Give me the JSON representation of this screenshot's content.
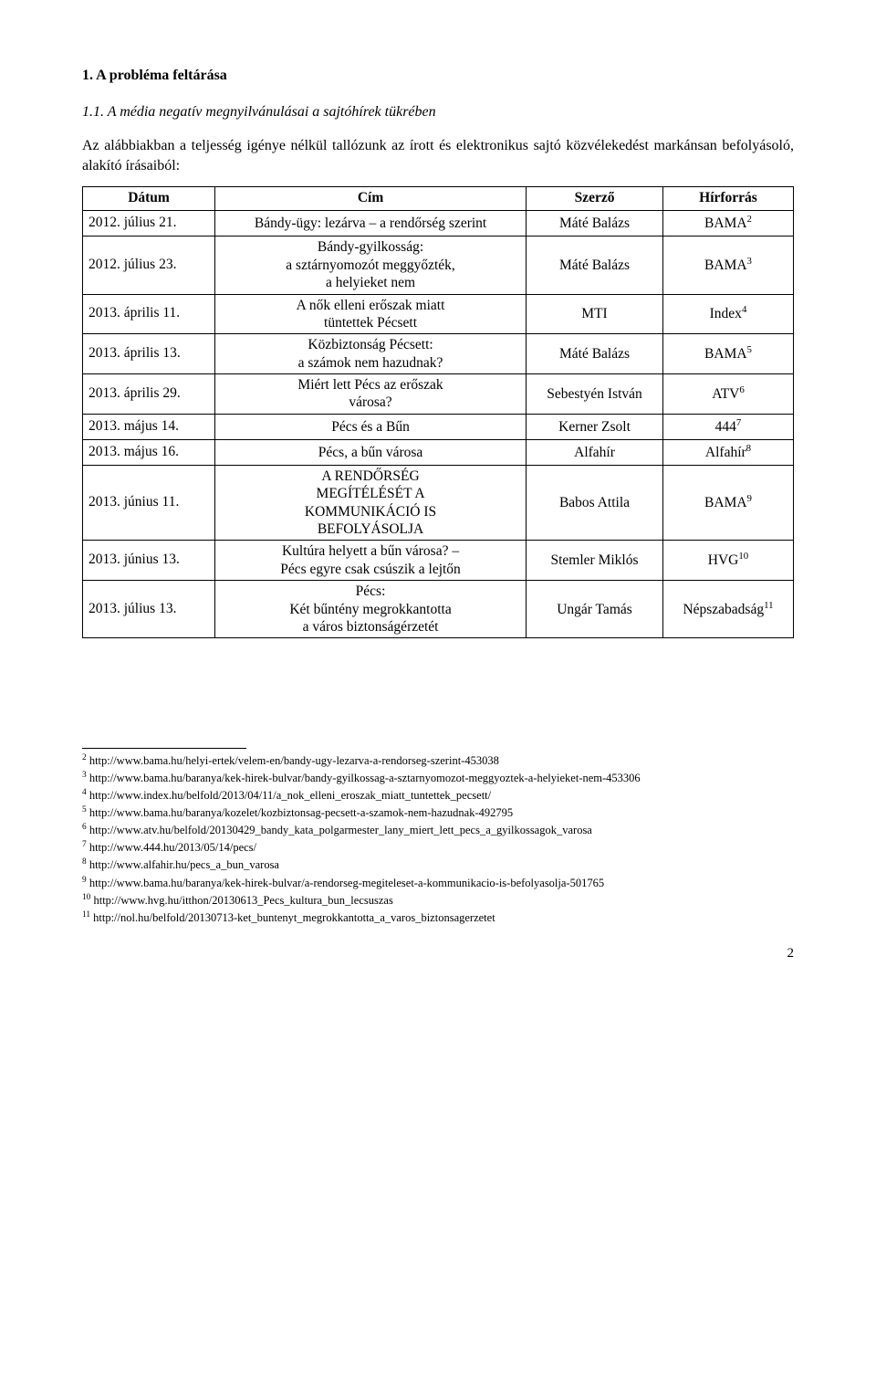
{
  "heading": "1. A probléma feltárása",
  "subheading": "1.1. A média negatív megnyilvánulásai a sajtóhírek tükrében",
  "intro": "Az alábbiakban a teljesség igénye nélkül tallózunk az írott és elektronikus sajtó közvélekedést markánsan befolyásoló, alakító írásaiból:",
  "table": {
    "headers": {
      "date": "Dátum",
      "title": "Cím",
      "author": "Szerző",
      "source": "Hírforrás"
    },
    "rows": [
      {
        "date": "2012. július 21.",
        "title": "Bándy-ügy: lezárva – a rendőrség szerint",
        "author": "Máté Balázs",
        "source": "BAMA",
        "sup": "2"
      },
      {
        "date": "2012. július 23.",
        "title": "Bándy-gyilkosság:\na sztárnyomozót meggyőzték,\na helyieket nem",
        "author": "Máté Balázs",
        "source": "BAMA",
        "sup": "3"
      },
      {
        "date": "2013. április 11.",
        "title": "A nők elleni erőszak miatt\ntüntettek Pécsett",
        "author": "MTI",
        "source": "Index",
        "sup": "4"
      },
      {
        "date": "2013. április 13.",
        "title": "Közbiztonság Pécsett:\na számok nem hazudnak?",
        "author": "Máté Balázs",
        "source": "BAMA",
        "sup": "5"
      },
      {
        "date": "2013. április 29.",
        "title": "Miért lett Pécs az erőszak\nvárosa?",
        "author": "Sebestyén István",
        "source": "ATV",
        "sup": "6"
      },
      {
        "date": "2013. május 14.",
        "title": "Pécs és a Bűn",
        "author": "Kerner Zsolt",
        "source": "444",
        "sup": "7"
      },
      {
        "date": "2013. május 16.",
        "title": "Pécs, a bűn városa",
        "author": "Alfahír",
        "source": "Alfahír",
        "sup": "8"
      },
      {
        "date": "2013. június 11.",
        "title": "A RENDŐRSÉG\nMEGÍTÉLÉSÉT A\nKOMMUNIKÁCIÓ IS\nBEFOLYÁSOLJA",
        "author": "Babos Attila",
        "source": "BAMA",
        "sup": "9"
      },
      {
        "date": "2013. június 13.",
        "title": "Kultúra helyett a bűn városa? –\nPécs egyre csak csúszik a lejtőn",
        "author": "Stemler Miklós",
        "source": "HVG",
        "sup": "10"
      },
      {
        "date": "2013. július 13.",
        "title": "Pécs:\nKét bűntény megrokkantotta\na város biztonságérzetét",
        "author": "Ungár Tamás",
        "source": "Népszabadság",
        "sup": "11"
      }
    ]
  },
  "footnotes": [
    {
      "n": "2",
      "text": "http://www.bama.hu/helyi-ertek/velem-en/bandy-ugy-lezarva-a-rendorseg-szerint-453038"
    },
    {
      "n": "3",
      "text": "http://www.bama.hu/baranya/kek-hirek-bulvar/bandy-gyilkossag-a-sztarnyomozot-meggyoztek-a-helyieket-nem-453306"
    },
    {
      "n": "4",
      "text": "http://www.index.hu/belfold/2013/04/11/a_nok_elleni_eroszak_miatt_tuntettek_pecsett/"
    },
    {
      "n": "5",
      "text": "http://www.bama.hu/baranya/kozelet/kozbiztonsag-pecsett-a-szamok-nem-hazudnak-492795"
    },
    {
      "n": "6",
      "text": "http://www.atv.hu/belfold/20130429_bandy_kata_polgarmester_lany_miert_lett_pecs_a_gyilkossagok_varosa"
    },
    {
      "n": "7",
      "text": "http://www.444.hu/2013/05/14/pecs/"
    },
    {
      "n": "8",
      "text": "http://www.alfahir.hu/pecs_a_bun_varosa"
    },
    {
      "n": "9",
      "text": "http://www.bama.hu/baranya/kek-hirek-bulvar/a-rendorseg-megiteleset-a-kommunikacio-is-befolyasolja-501765"
    },
    {
      "n": "10",
      "text": "http://www.hvg.hu/itthon/20130613_Pecs_kultura_bun_lecsuszas"
    },
    {
      "n": "11",
      "text": "http://nol.hu/belfold/20130713-ket_buntenyt_megrokkantotta_a_varos_biztonsagerzetet"
    }
  ],
  "page_number": "2"
}
